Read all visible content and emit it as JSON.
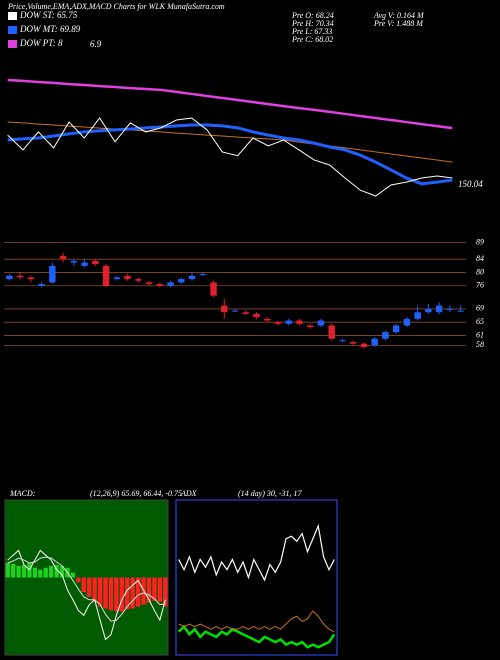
{
  "header": {
    "title": "Price,Volume,EMA,ADX,MACD Charts for WLK MunafaSutra.com",
    "legend": [
      {
        "label": "DOW ST: 65.75",
        "color": "#ffffff"
      },
      {
        "label": "DOW MT: 69.89",
        "color": "#2060ff"
      },
      {
        "label": "DOW PT: 8",
        "color": "#e040e0"
      }
    ],
    "extra": "6.9",
    "stats": [
      "Pre O: 68.24",
      "Pre H: 70.34",
      "Pre L: 67.33",
      "Pre C: 68.02"
    ],
    "volume": [
      "Avg V: 0.164 M",
      "Pre V: 1.488 M"
    ]
  },
  "chart_data": [
    {
      "type": "line",
      "ylim": [
        60,
        110
      ],
      "annotation": "150.04",
      "series": [
        {
          "name": "pink",
          "color": "#e040e0",
          "width": 2.5,
          "values": [
            103.1,
            102.8,
            102.4,
            102.1,
            101.7,
            101.4,
            101.0,
            100.7,
            100.3,
            100.0,
            99.7,
            99.0,
            98.3,
            97.6,
            96.9,
            96.2,
            95.5,
            94.8,
            94.1,
            93.4,
            92.8,
            92.1,
            91.4,
            90.7,
            90.0,
            89.3,
            88.6,
            87.9,
            87.2,
            86.5
          ]
        },
        {
          "name": "orange",
          "color": "#c87020",
          "width": 1,
          "values": [
            88.6,
            88.3,
            87.9,
            87.6,
            87.2,
            86.9,
            86.5,
            86.2,
            85.9,
            85.5,
            85.2,
            84.8,
            84.5,
            84.1,
            83.8,
            83.4,
            83.1,
            82.8,
            82.4,
            81.7,
            81.0,
            80.4,
            79.7,
            79.0,
            78.3,
            77.6,
            76.9,
            76.2,
            75.5,
            74.8
          ]
        },
        {
          "name": "blue",
          "color": "#2060ff",
          "width": 3,
          "values": [
            82.4,
            82.8,
            83.1,
            83.8,
            84.5,
            85.2,
            85.6,
            85.9,
            86.2,
            86.6,
            86.9,
            87.3,
            87.6,
            87.6,
            87.3,
            86.6,
            85.2,
            84.1,
            83.1,
            82.4,
            81.3,
            80.0,
            79.0,
            77.2,
            74.8,
            72.1,
            69.3,
            67.3,
            67.9,
            68.6
          ]
        },
        {
          "name": "white",
          "color": "#ffffff",
          "width": 1,
          "values": [
            84.1,
            79.0,
            85.2,
            79.7,
            88.6,
            83.1,
            90.0,
            81.8,
            88.3,
            85.2,
            86.6,
            89.3,
            90.0,
            85.9,
            78.3,
            77.0,
            83.1,
            80.4,
            82.4,
            79.0,
            75.5,
            73.8,
            69.3,
            65.1,
            63.1,
            66.9,
            67.9,
            69.3,
            70.0,
            69.3
          ]
        }
      ]
    },
    {
      "type": "candlestick",
      "ylim": [
        56,
        91
      ],
      "yticks": [
        58,
        61,
        65,
        69,
        76,
        80,
        84,
        89
      ],
      "grid": true,
      "up_color": "#2060ff",
      "down_color": "#e0202a",
      "open": [
        78,
        79,
        78.5,
        76,
        77,
        85,
        83,
        82,
        83.5,
        82,
        78,
        79,
        78,
        77,
        76.5,
        76,
        77,
        78,
        79.5,
        77,
        70,
        68.5,
        68,
        67.5,
        66,
        65,
        64.5,
        65.5,
        64,
        64,
        64,
        59.5,
        59,
        58.5,
        58,
        60,
        62,
        64,
        66,
        68,
        68,
        69,
        68.5
      ],
      "high": [
        79.5,
        80,
        79,
        77,
        83,
        86,
        84,
        84,
        84,
        82.5,
        79,
        79.5,
        78.5,
        77.5,
        77,
        77.5,
        78.5,
        80,
        80,
        77.5,
        72,
        69,
        68.5,
        68,
        66.5,
        65.5,
        66,
        66,
        64.5,
        66,
        64.5,
        60,
        59.5,
        59,
        60.5,
        62.5,
        64.5,
        66.5,
        70,
        70.5,
        71,
        70,
        70
      ],
      "low": [
        77.5,
        78,
        77,
        75.5,
        76.5,
        83,
        82,
        81.5,
        82,
        75.5,
        77.5,
        77.5,
        77,
        76,
        75.5,
        75.5,
        76.5,
        77.5,
        79,
        72.5,
        66,
        68,
        67,
        66,
        65,
        64,
        64,
        64,
        63,
        63.5,
        59.5,
        59,
        58,
        57,
        57.5,
        59.5,
        61.5,
        63.5,
        65.5,
        67.5,
        67.5,
        68,
        68
      ],
      "close": [
        79,
        78.5,
        78,
        76.5,
        82,
        84,
        83.5,
        83,
        82.5,
        76,
        78.5,
        78,
        77.5,
        76.5,
        76,
        77,
        78,
        79,
        79.5,
        73,
        68,
        68.5,
        67.5,
        66.5,
        65.5,
        64.5,
        65.5,
        64.5,
        63.5,
        65.5,
        60,
        59.5,
        58.5,
        57.5,
        60,
        62,
        64,
        66,
        68,
        69,
        70,
        69,
        68.5
      ]
    },
    {
      "type": "macd",
      "title": "MACD:",
      "subtitle": "(12,26,9) 65.69, 66.44, -0.75",
      "ylim": [
        -8,
        8
      ],
      "background": "#005a00",
      "values": [
        1.5,
        1.4,
        1.2,
        1.3,
        1.5,
        1.0,
        0.8,
        1.0,
        1.2,
        1.3,
        1.2,
        1.0,
        0.5,
        -0.5,
        -1.5,
        -2.0,
        -2.5,
        -3.0,
        -3.2,
        -3.4,
        -3.5,
        -3.5,
        -3.3,
        -3.2,
        -3.0,
        -2.8,
        -2.6,
        -2.4,
        -2.5,
        -3.0
      ],
      "up_color": "#20d020",
      "down_color": "#ff2020",
      "series": [
        {
          "name": "macd",
          "color": "#ffffff",
          "width": 1,
          "values": [
            1.8,
            2.3,
            2.8,
            1.3,
            0.8,
            1.8,
            2.8,
            2.3,
            1.8,
            0.8,
            0.3,
            -1.3,
            -2.3,
            -3.4,
            -3.9,
            -2.8,
            -2.3,
            -4.4,
            -6.4,
            -5.9,
            -3.9,
            -2.3,
            -1.3,
            -0.8,
            -0.3,
            -1.3,
            -2.3,
            -3.4,
            -4.4,
            -2.3
          ]
        },
        {
          "name": "signal",
          "color": "#dddddd",
          "width": 1,
          "values": [
            1.5,
            1.7,
            2.0,
            1.8,
            1.5,
            1.6,
            2.0,
            2.1,
            2.0,
            1.6,
            1.2,
            0.5,
            -0.3,
            -1.2,
            -2.0,
            -2.3,
            -2.3,
            -2.8,
            -3.8,
            -4.5,
            -4.4,
            -3.8,
            -3.0,
            -2.4,
            -1.8,
            -1.6,
            -1.8,
            -2.2,
            -2.8,
            -2.7
          ]
        }
      ]
    },
    {
      "type": "adx",
      "title": "ADX",
      "subtitle": "(14 day) 30, -31, 17",
      "ylim": [
        0,
        60
      ],
      "background": "#000000",
      "series": [
        {
          "name": "adx",
          "color": "#ffffff",
          "width": 1.2,
          "values": [
            37,
            33,
            38,
            32,
            37,
            34,
            38,
            31,
            36,
            33,
            37,
            32,
            36,
            30,
            37,
            33,
            29,
            35,
            32,
            36,
            45,
            46,
            44,
            47,
            40,
            45,
            50,
            38,
            33,
            37
          ]
        },
        {
          "name": "plus",
          "color": "#00e000",
          "width": 2.5,
          "values": [
            9,
            11,
            8,
            10,
            7,
            9,
            8,
            7,
            9,
            8,
            10,
            9,
            8,
            7,
            6,
            5,
            7,
            6,
            5,
            6,
            4,
            5,
            4,
            5,
            3,
            4,
            3,
            4,
            5,
            8
          ]
        },
        {
          "name": "minus",
          "color": "#c87020",
          "width": 1,
          "values": [
            12,
            11,
            12,
            11,
            12,
            11,
            10,
            11,
            10,
            11,
            10,
            10,
            11,
            10,
            11,
            10,
            11,
            10,
            11,
            10,
            12,
            14,
            15,
            13,
            14,
            17,
            15,
            12,
            10,
            9
          ]
        }
      ]
    }
  ]
}
